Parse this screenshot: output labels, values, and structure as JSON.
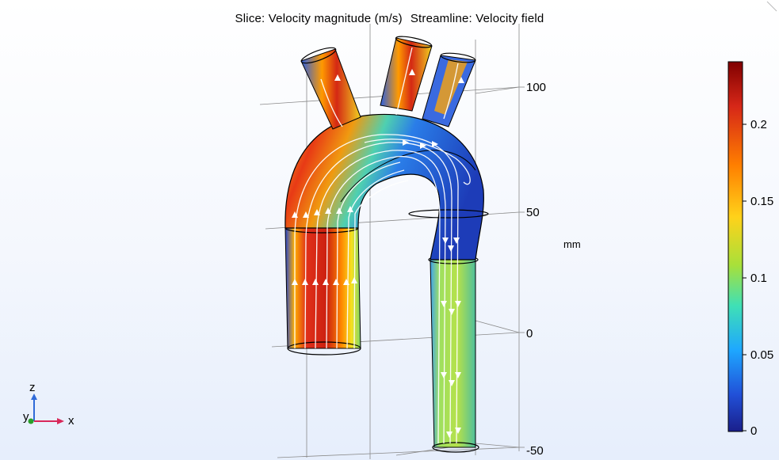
{
  "plot": {
    "title_slice": "Slice: Velocity magnitude (m/s)",
    "title_streamline": "Streamline: Velocity field",
    "z_axis_unit": "mm",
    "z_axis_ticks": [
      "100",
      "50",
      "0",
      "-50"
    ]
  },
  "colorbar": {
    "ticks": [
      "0.2",
      "0.15",
      "0.1",
      "0.05",
      "0"
    ],
    "colors": [
      "#800000",
      "#d62718",
      "#ff7f00",
      "#ffd21a",
      "#a8e03a",
      "#3fe0b6",
      "#1ea7ff",
      "#2150d8",
      "#1a1e8a"
    ]
  },
  "triad": {
    "x": "x",
    "y": "y",
    "z": "z"
  }
}
